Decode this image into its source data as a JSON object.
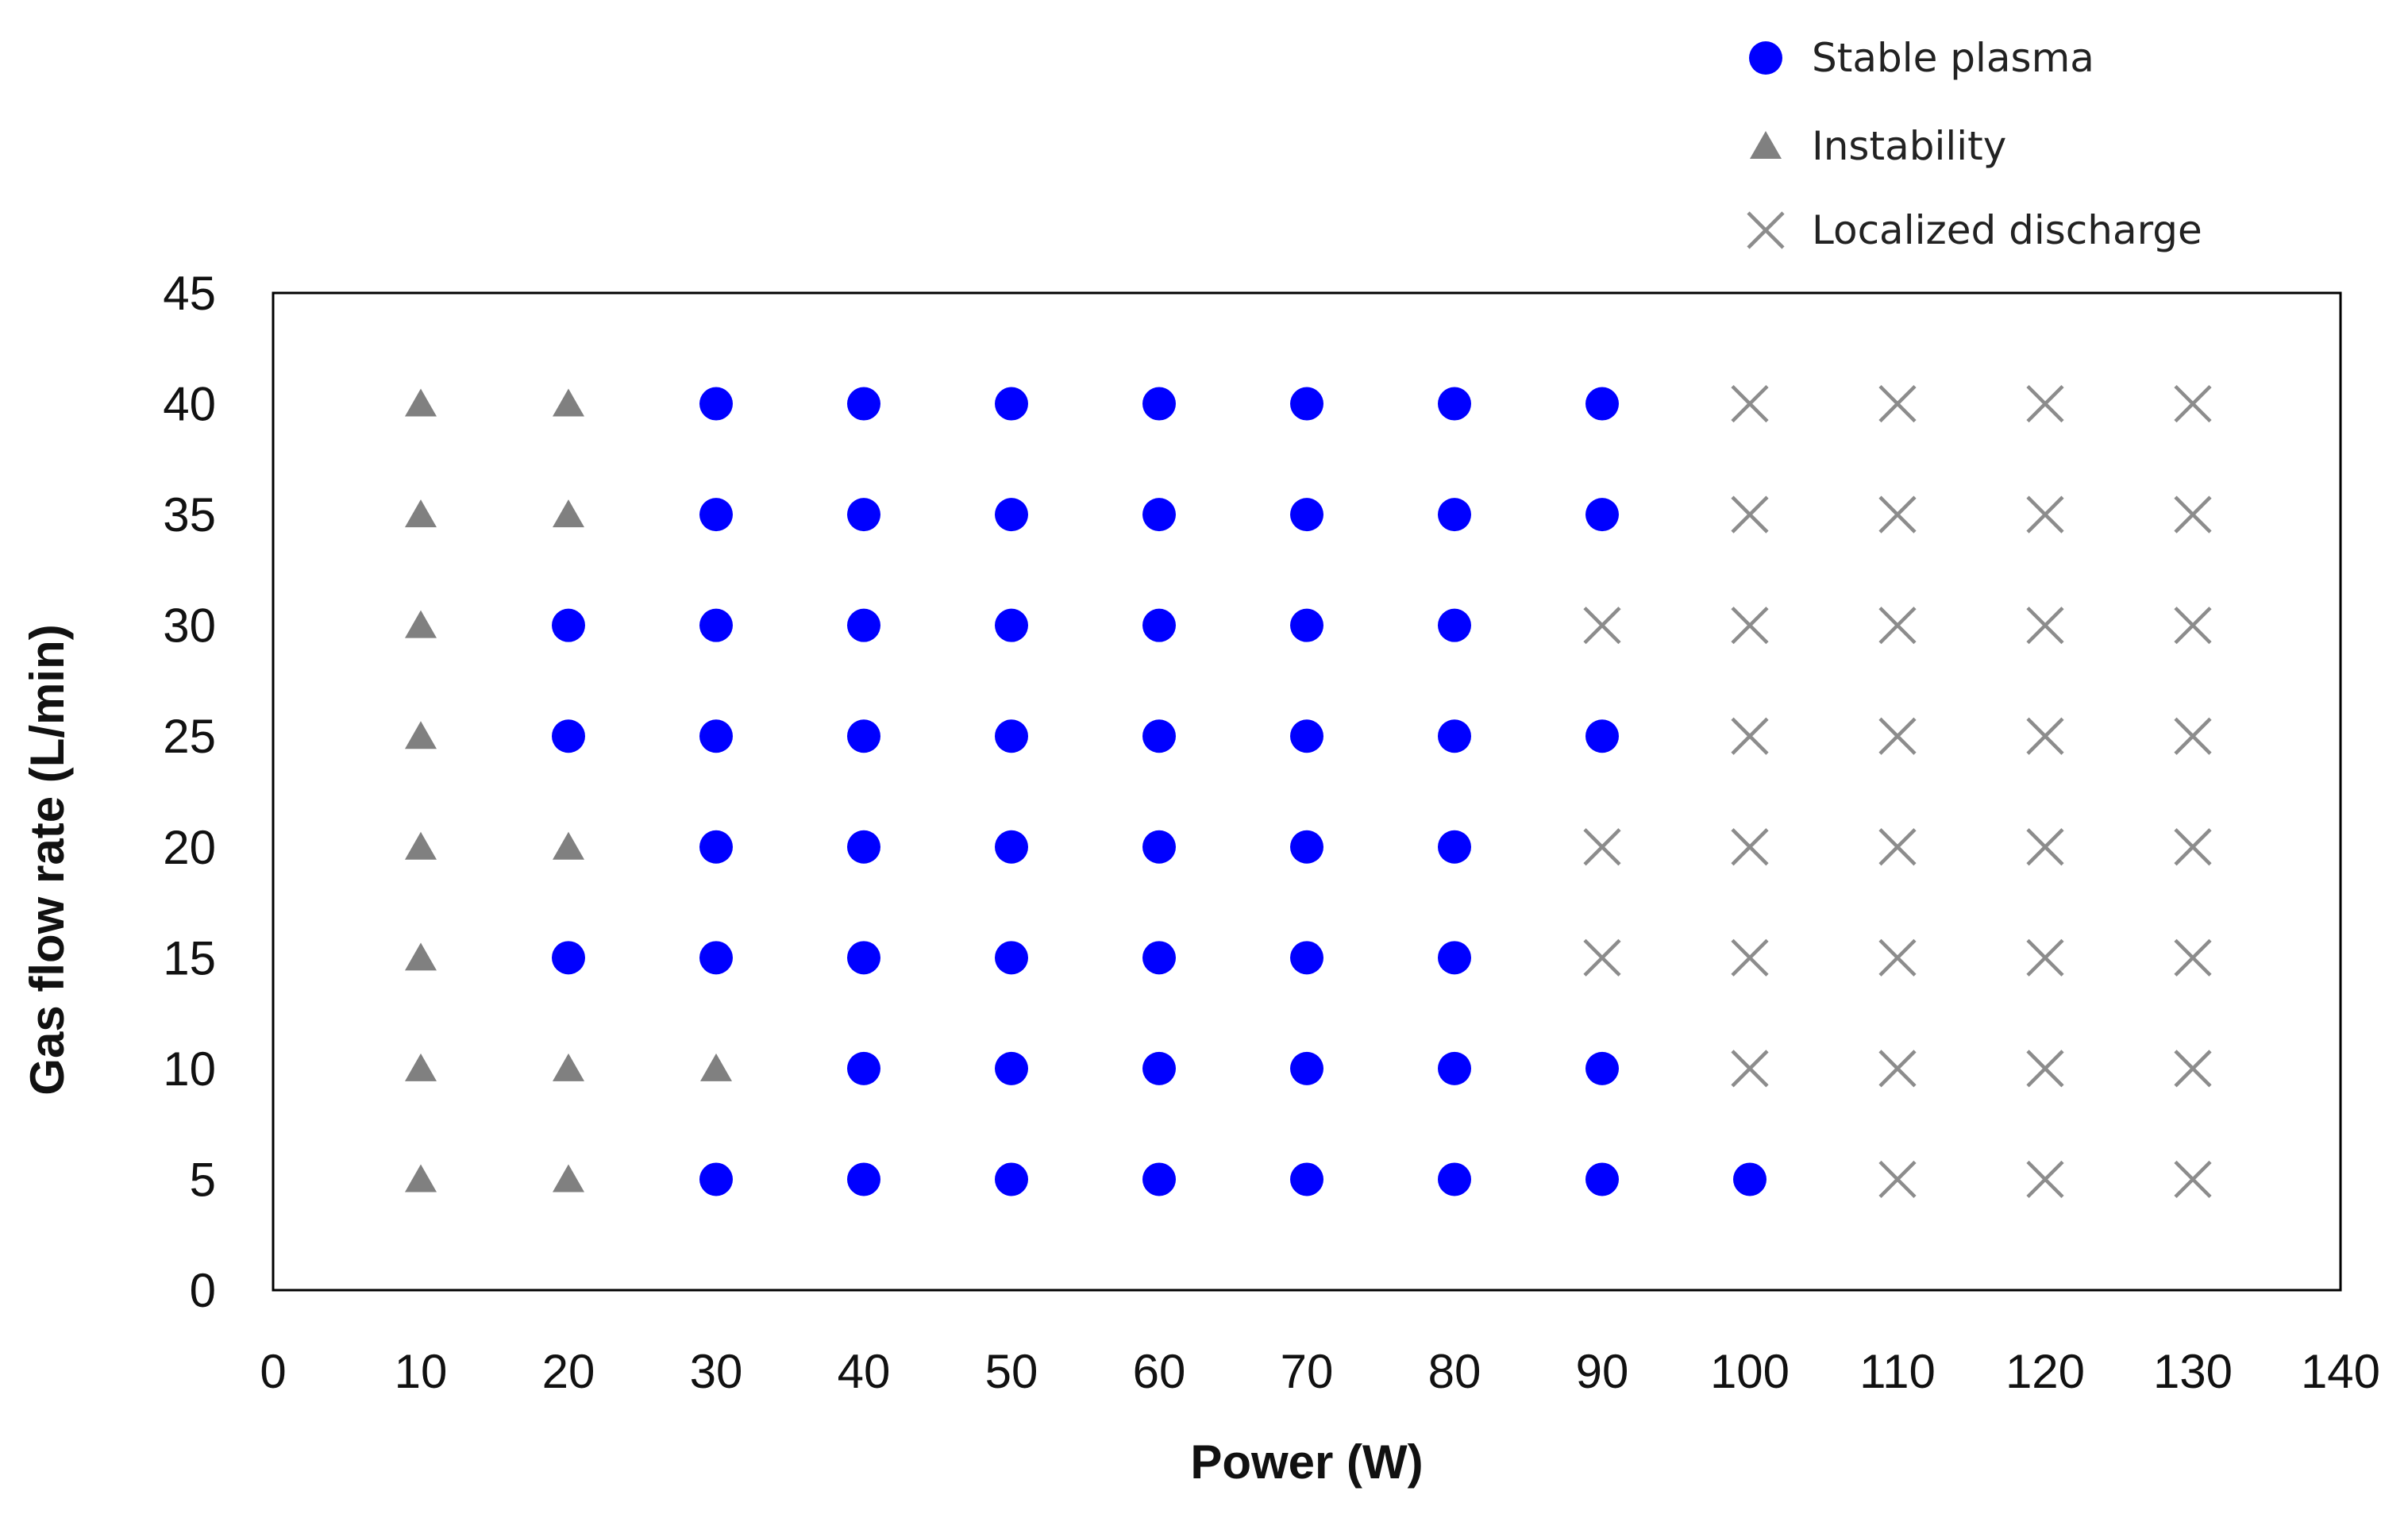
{
  "chart_data": {
    "type": "scatter",
    "title": "",
    "xlabel": "Power (W)",
    "ylabel": "Gas flow rate (L/min)",
    "xlim": [
      0,
      140
    ],
    "ylim": [
      0,
      45
    ],
    "xticks": [
      0,
      10,
      20,
      30,
      40,
      50,
      60,
      70,
      80,
      90,
      100,
      110,
      120,
      130,
      140
    ],
    "yticks": [
      0,
      5,
      10,
      15,
      20,
      25,
      30,
      35,
      40,
      45
    ],
    "grid": false,
    "legend_position": "top-right",
    "colors": {
      "stable": "#0000ff",
      "instability": "#808080",
      "localized": "#8c8c8c"
    },
    "series": [
      {
        "name": "Stable plasma",
        "marker": "circle",
        "points": [
          [
            30,
            40
          ],
          [
            40,
            40
          ],
          [
            50,
            40
          ],
          [
            60,
            40
          ],
          [
            70,
            40
          ],
          [
            80,
            40
          ],
          [
            90,
            40
          ],
          [
            30,
            35
          ],
          [
            40,
            35
          ],
          [
            50,
            35
          ],
          [
            60,
            35
          ],
          [
            70,
            35
          ],
          [
            80,
            35
          ],
          [
            90,
            35
          ],
          [
            20,
            30
          ],
          [
            30,
            30
          ],
          [
            40,
            30
          ],
          [
            50,
            30
          ],
          [
            60,
            30
          ],
          [
            70,
            30
          ],
          [
            80,
            30
          ],
          [
            20,
            25
          ],
          [
            30,
            25
          ],
          [
            40,
            25
          ],
          [
            50,
            25
          ],
          [
            60,
            25
          ],
          [
            70,
            25
          ],
          [
            80,
            25
          ],
          [
            90,
            25
          ],
          [
            30,
            20
          ],
          [
            40,
            20
          ],
          [
            50,
            20
          ],
          [
            60,
            20
          ],
          [
            70,
            20
          ],
          [
            80,
            20
          ],
          [
            20,
            15
          ],
          [
            30,
            15
          ],
          [
            40,
            15
          ],
          [
            50,
            15
          ],
          [
            60,
            15
          ],
          [
            70,
            15
          ],
          [
            80,
            15
          ],
          [
            40,
            10
          ],
          [
            50,
            10
          ],
          [
            60,
            10
          ],
          [
            70,
            10
          ],
          [
            80,
            10
          ],
          [
            90,
            10
          ],
          [
            30,
            5
          ],
          [
            40,
            5
          ],
          [
            50,
            5
          ],
          [
            60,
            5
          ],
          [
            70,
            5
          ],
          [
            80,
            5
          ],
          [
            90,
            5
          ],
          [
            100,
            5
          ]
        ]
      },
      {
        "name": "Instability",
        "marker": "triangle",
        "points": [
          [
            10,
            40
          ],
          [
            20,
            40
          ],
          [
            10,
            35
          ],
          [
            20,
            35
          ],
          [
            10,
            30
          ],
          [
            10,
            25
          ],
          [
            10,
            20
          ],
          [
            20,
            20
          ],
          [
            10,
            15
          ],
          [
            10,
            10
          ],
          [
            20,
            10
          ],
          [
            30,
            10
          ],
          [
            10,
            5
          ],
          [
            20,
            5
          ]
        ]
      },
      {
        "name": "Localized discharge",
        "marker": "x",
        "points": [
          [
            100,
            40
          ],
          [
            110,
            40
          ],
          [
            120,
            40
          ],
          [
            130,
            40
          ],
          [
            100,
            35
          ],
          [
            110,
            35
          ],
          [
            120,
            35
          ],
          [
            130,
            35
          ],
          [
            90,
            30
          ],
          [
            100,
            30
          ],
          [
            110,
            30
          ],
          [
            120,
            30
          ],
          [
            130,
            30
          ],
          [
            100,
            25
          ],
          [
            110,
            25
          ],
          [
            120,
            25
          ],
          [
            130,
            25
          ],
          [
            90,
            20
          ],
          [
            100,
            20
          ],
          [
            110,
            20
          ],
          [
            120,
            20
          ],
          [
            130,
            20
          ],
          [
            90,
            15
          ],
          [
            100,
            15
          ],
          [
            110,
            15
          ],
          [
            120,
            15
          ],
          [
            130,
            15
          ],
          [
            100,
            10
          ],
          [
            110,
            10
          ],
          [
            120,
            10
          ],
          [
            130,
            10
          ],
          [
            110,
            5
          ],
          [
            120,
            5
          ],
          [
            130,
            5
          ]
        ]
      }
    ]
  }
}
